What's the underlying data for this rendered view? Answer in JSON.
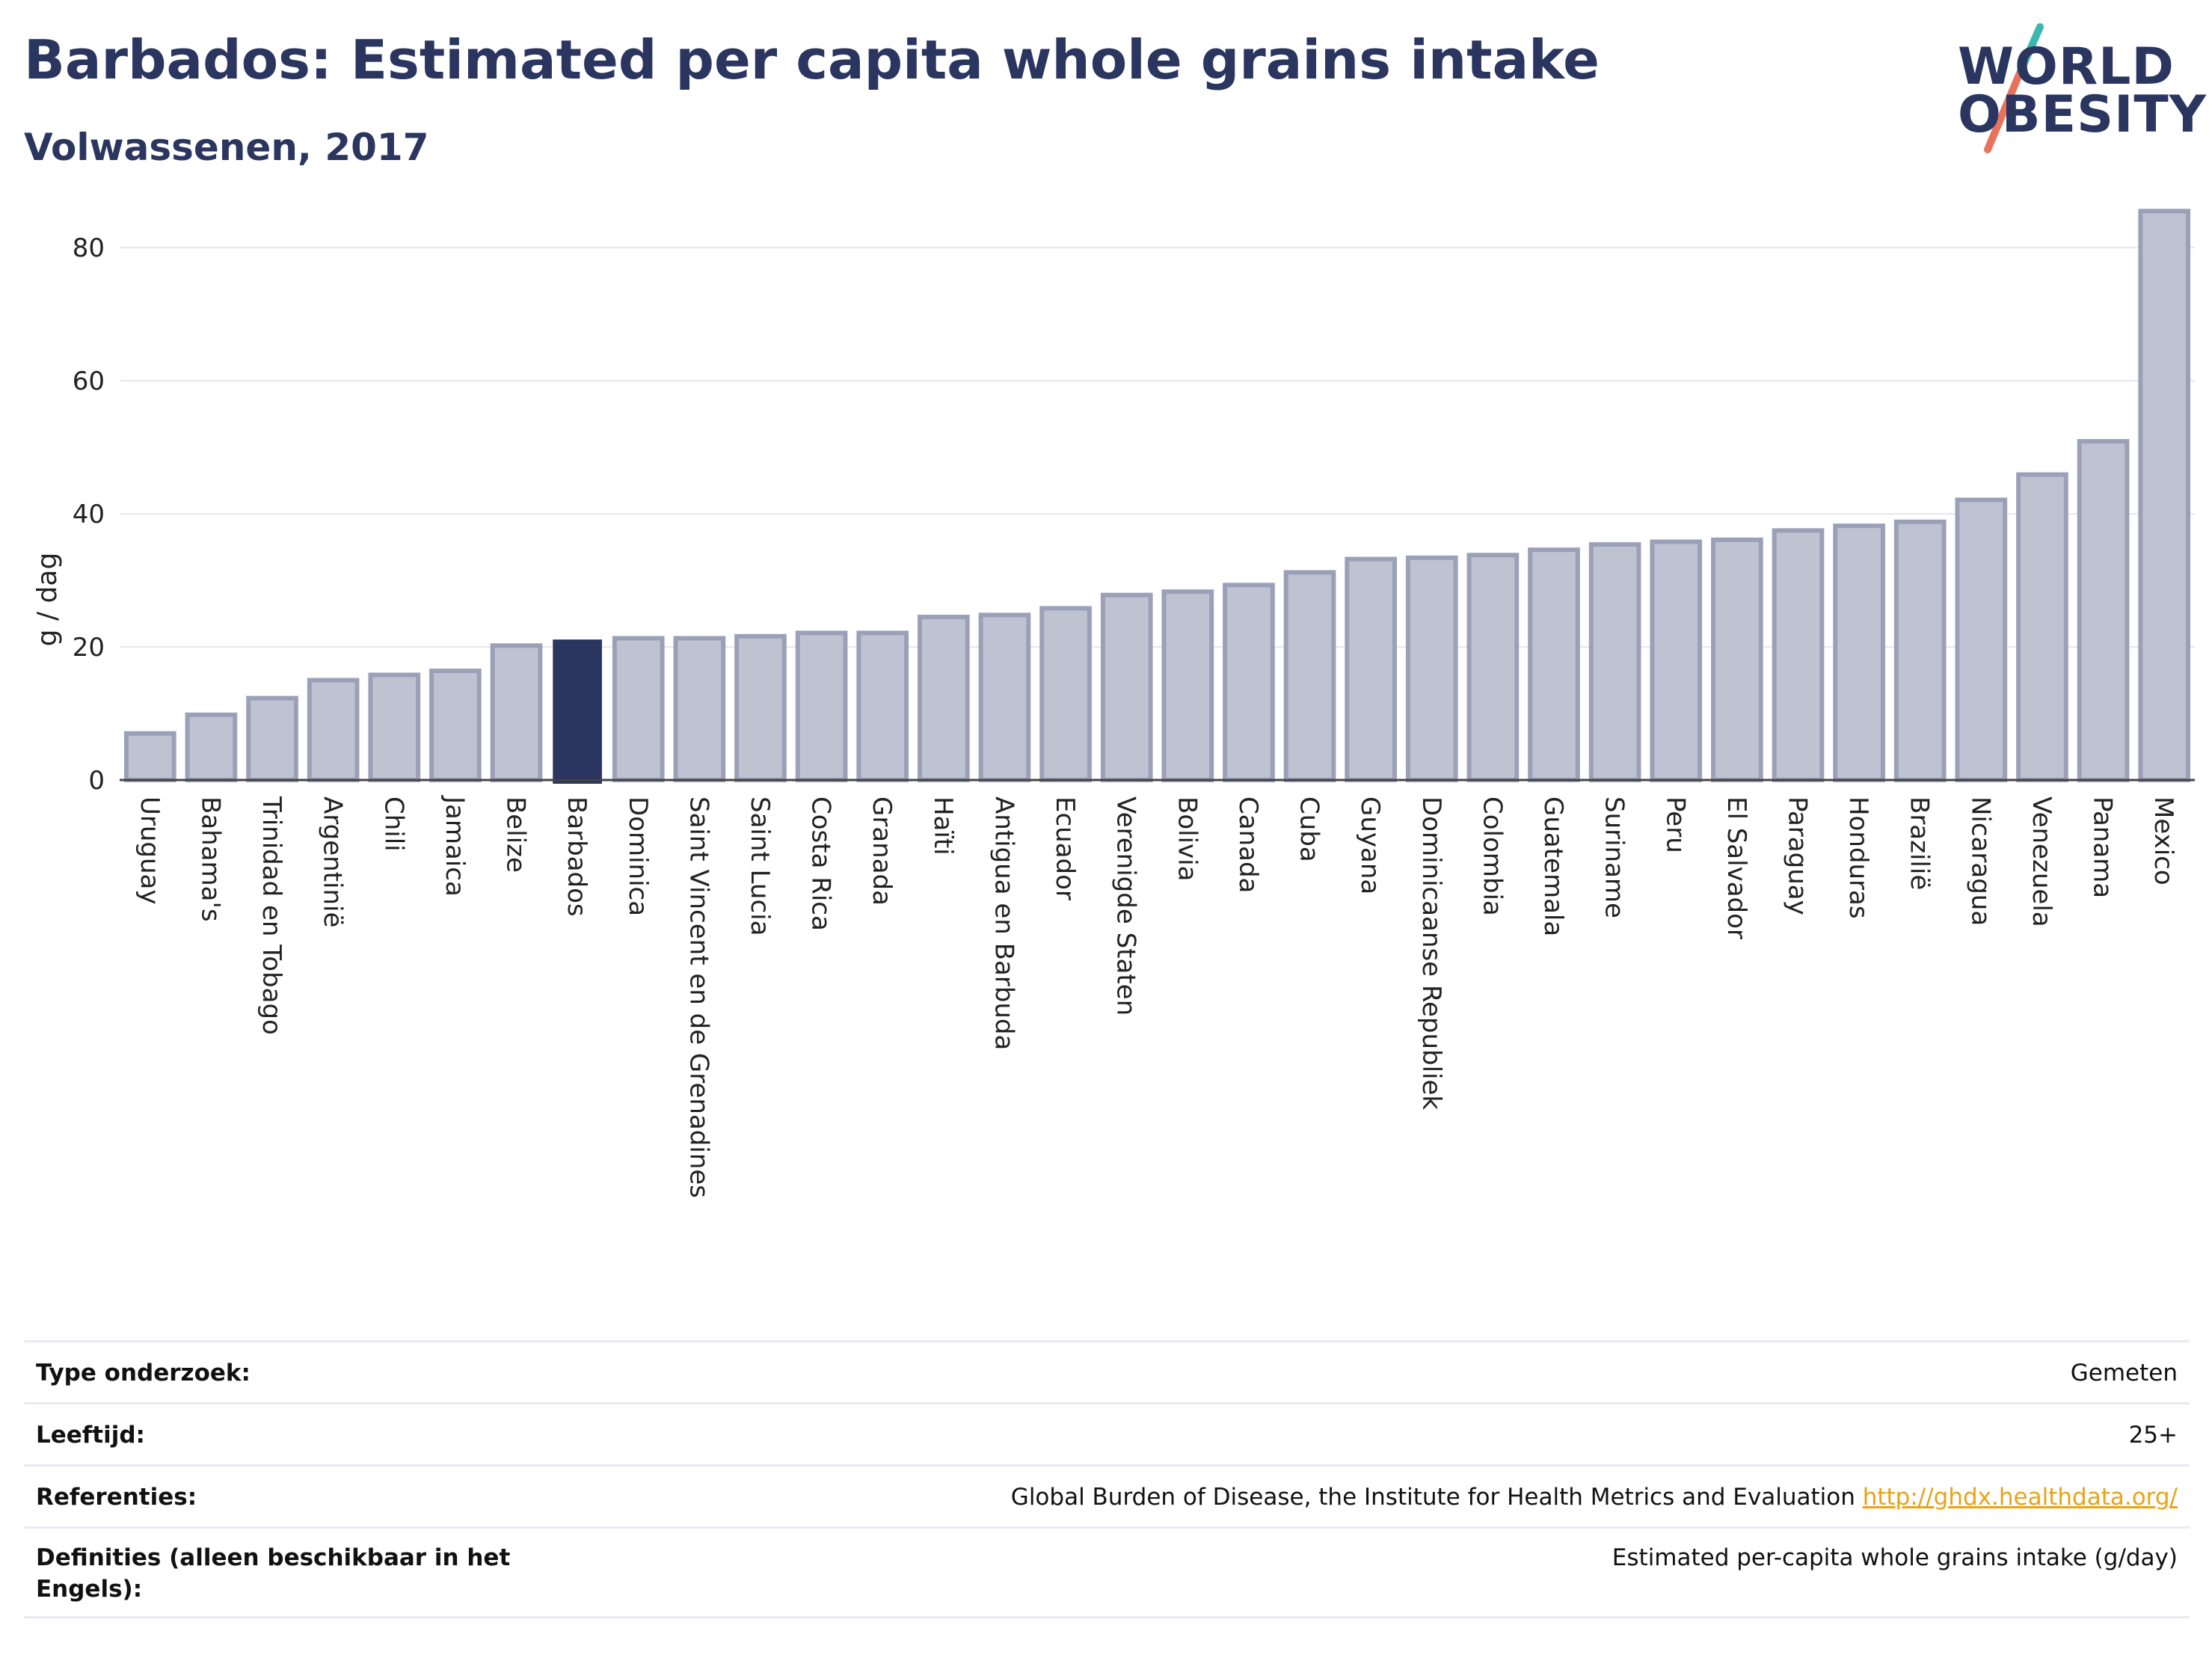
{
  "header": {
    "title": "Barbados: Estimated per capita whole grains intake",
    "subtitle": "Volwassenen, 2017"
  },
  "logo": {
    "line1": "WORLD",
    "line2": "OBESITY"
  },
  "chart_data": {
    "type": "bar",
    "ylabel": "g / dag",
    "xlabel": "",
    "ylim": [
      0,
      88
    ],
    "yticks": [
      0,
      20,
      40,
      60,
      80
    ],
    "grid": true,
    "highlight": "Barbados",
    "categories": [
      "Uruguay",
      "Bahama's",
      "Trinidad en Tobago",
      "Argentinië",
      "Chili",
      "Jamaica",
      "Belize",
      "Barbados",
      "Dominica",
      "Saint Vincent en de Grenadines",
      "Saint Lucia",
      "Costa Rica",
      "Granada",
      "Haïti",
      "Antigua en Barbuda",
      "Ecuador",
      "Verenigde Staten",
      "Bolivia",
      "Canada",
      "Cuba",
      "Guyana",
      "Dominicaanse Republiek",
      "Colombia",
      "Guatemala",
      "Suriname",
      "Peru",
      "El Salvador",
      "Paraguay",
      "Honduras",
      "Brazilië",
      "Nicaragua",
      "Venezuela",
      "Panama",
      "Mexico"
    ],
    "values": [
      7,
      9.8,
      12.3,
      15,
      15.8,
      16.4,
      20.2,
      21,
      21.3,
      21.3,
      21.6,
      22.1,
      22.1,
      24.5,
      24.8,
      25.8,
      27.8,
      28.3,
      29.3,
      31.2,
      33.2,
      33.4,
      33.8,
      34.6,
      35.4,
      35.8,
      36.1,
      37.5,
      38.2,
      38.8,
      42.1,
      45.9,
      50.9,
      85.5
    ],
    "colors": {
      "default_fill": "#bfc3d1",
      "default_stroke": "#9aa0b8",
      "highlight": "#2a3560",
      "grid": "#e6e7ee",
      "axis": "#444444"
    }
  },
  "info": {
    "rows": [
      {
        "label": "Type onderzoek:",
        "value": "Gemeten"
      },
      {
        "label": "Leeftijd:",
        "value": "25+"
      },
      {
        "label": "Referenties:",
        "value": "Global Burden of Disease, the Institute for Health Metrics and Evaluation",
        "link": "http://ghdx.healthdata.org/"
      },
      {
        "label": "Definities (alleen beschikbaar in het Engels):",
        "value": "Estimated per-capita whole grains intake (g/day)"
      }
    ]
  }
}
